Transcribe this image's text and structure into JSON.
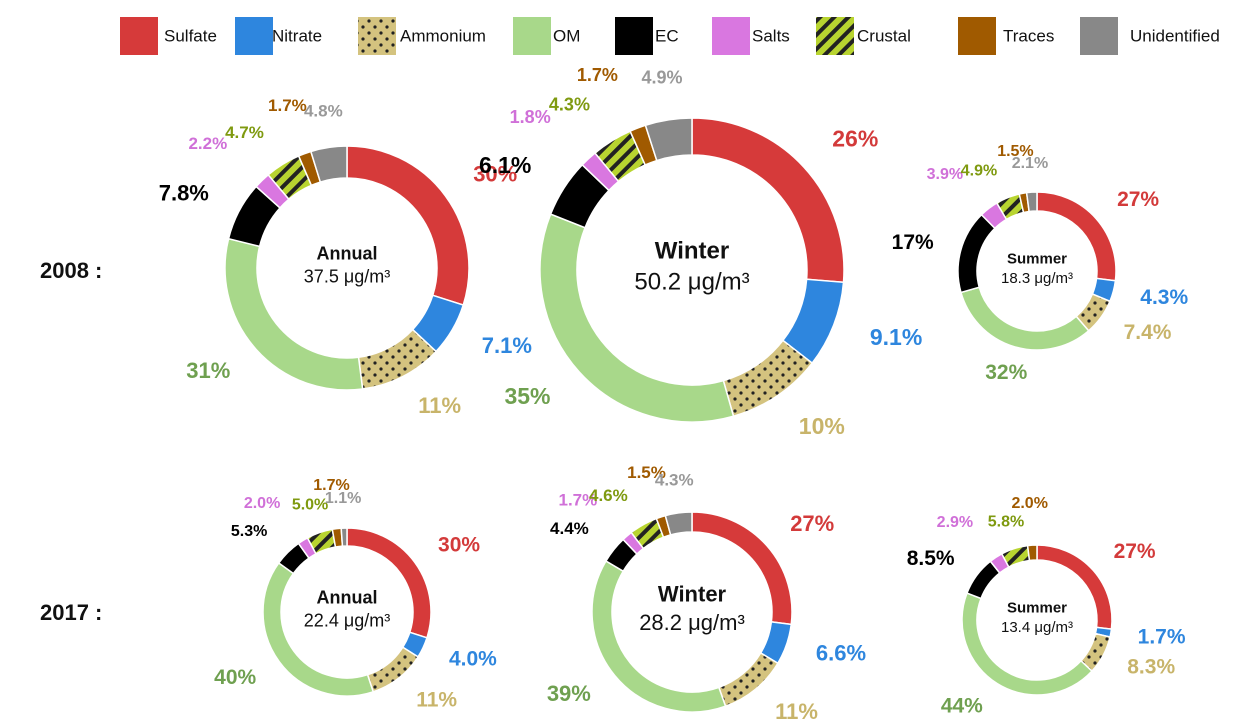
{
  "legend": {
    "categories": [
      "Sulfate",
      "Nitrate",
      "Ammonium",
      "OM",
      "EC",
      "Salts",
      "Crustal",
      "Traces",
      "Unidentified"
    ],
    "colors": [
      "#d63a3a",
      "#2e86de",
      "#d4c37f",
      "#a8d88a",
      "#000000",
      "#d977e0",
      "#b8d430",
      "#a05a00",
      "#888888"
    ],
    "label_colors": [
      "#d33a3a",
      "#2e86de",
      "#c8b46a",
      "#6fa050",
      "#000000",
      "#d070d8",
      "#7f9a10",
      "#a05a00",
      "#999999"
    ],
    "patterns": [
      "none",
      "none",
      "dots",
      "none",
      "none",
      "none",
      "stripes",
      "none",
      "none"
    ]
  },
  "row_labels": [
    "2008 :",
    "2017 :"
  ],
  "chart_data": [
    {
      "type": "donut",
      "title": "Annual",
      "subtitle": "37.5 μg/m³",
      "values": [
        30,
        7.1,
        11,
        31,
        7.8,
        2.2,
        4.7,
        1.7,
        4.8
      ],
      "value_labels": [
        "30%",
        "7.1%",
        "11%",
        "31%",
        "7.8%",
        "2.2%",
        "4.7%",
        "1.7%",
        "4.8%"
      ]
    },
    {
      "type": "donut",
      "title": "Winter",
      "subtitle": "50.2 μg/m³",
      "values": [
        26,
        9.1,
        10,
        35,
        6.1,
        1.8,
        4.3,
        1.7,
        4.9
      ],
      "value_labels": [
        "26%",
        "9.1%",
        "10%",
        "35%",
        "6.1%",
        "1.8%",
        "4.3%",
        "1.7%",
        "4.9%"
      ]
    },
    {
      "type": "donut",
      "title": "Summer",
      "subtitle": "18.3 μg/m³",
      "values": [
        27,
        4.3,
        7.4,
        32,
        17,
        3.9,
        4.9,
        1.5,
        2.1
      ],
      "value_labels": [
        "27%",
        "4.3%",
        "7.4%",
        "32%",
        "17%",
        "3.9%",
        "4.9%",
        "1.5%",
        "2.1%"
      ]
    },
    {
      "type": "donut",
      "title": "Annual",
      "subtitle": "22.4 μg/m³",
      "values": [
        30,
        4.0,
        11,
        40,
        5.3,
        2.0,
        5.0,
        1.7,
        1.1
      ],
      "value_labels": [
        "30%",
        "4.0%",
        "11%",
        "40%",
        "5.3%",
        "2.0%",
        "5.0%",
        "1.7%",
        "1.1%"
      ]
    },
    {
      "type": "donut",
      "title": "Winter",
      "subtitle": "28.2 μg/m³",
      "values": [
        27,
        6.6,
        11,
        39,
        4.4,
        1.7,
        4.6,
        1.5,
        4.3
      ],
      "value_labels": [
        "27%",
        "6.6%",
        "11%",
        "39%",
        "4.4%",
        "1.7%",
        "4.6%",
        "1.5%",
        "4.3%"
      ]
    },
    {
      "type": "donut",
      "title": "Summer",
      "subtitle": "13.4 μg/m³",
      "values": [
        27,
        1.7,
        8.3,
        44,
        8.5,
        2.9,
        5.8,
        2.0,
        null
      ],
      "value_labels": [
        "27%",
        "1.7%",
        "8.3%",
        "44%",
        "8.5%",
        "2.9%",
        "5.8%",
        "2.0%",
        null
      ]
    }
  ]
}
